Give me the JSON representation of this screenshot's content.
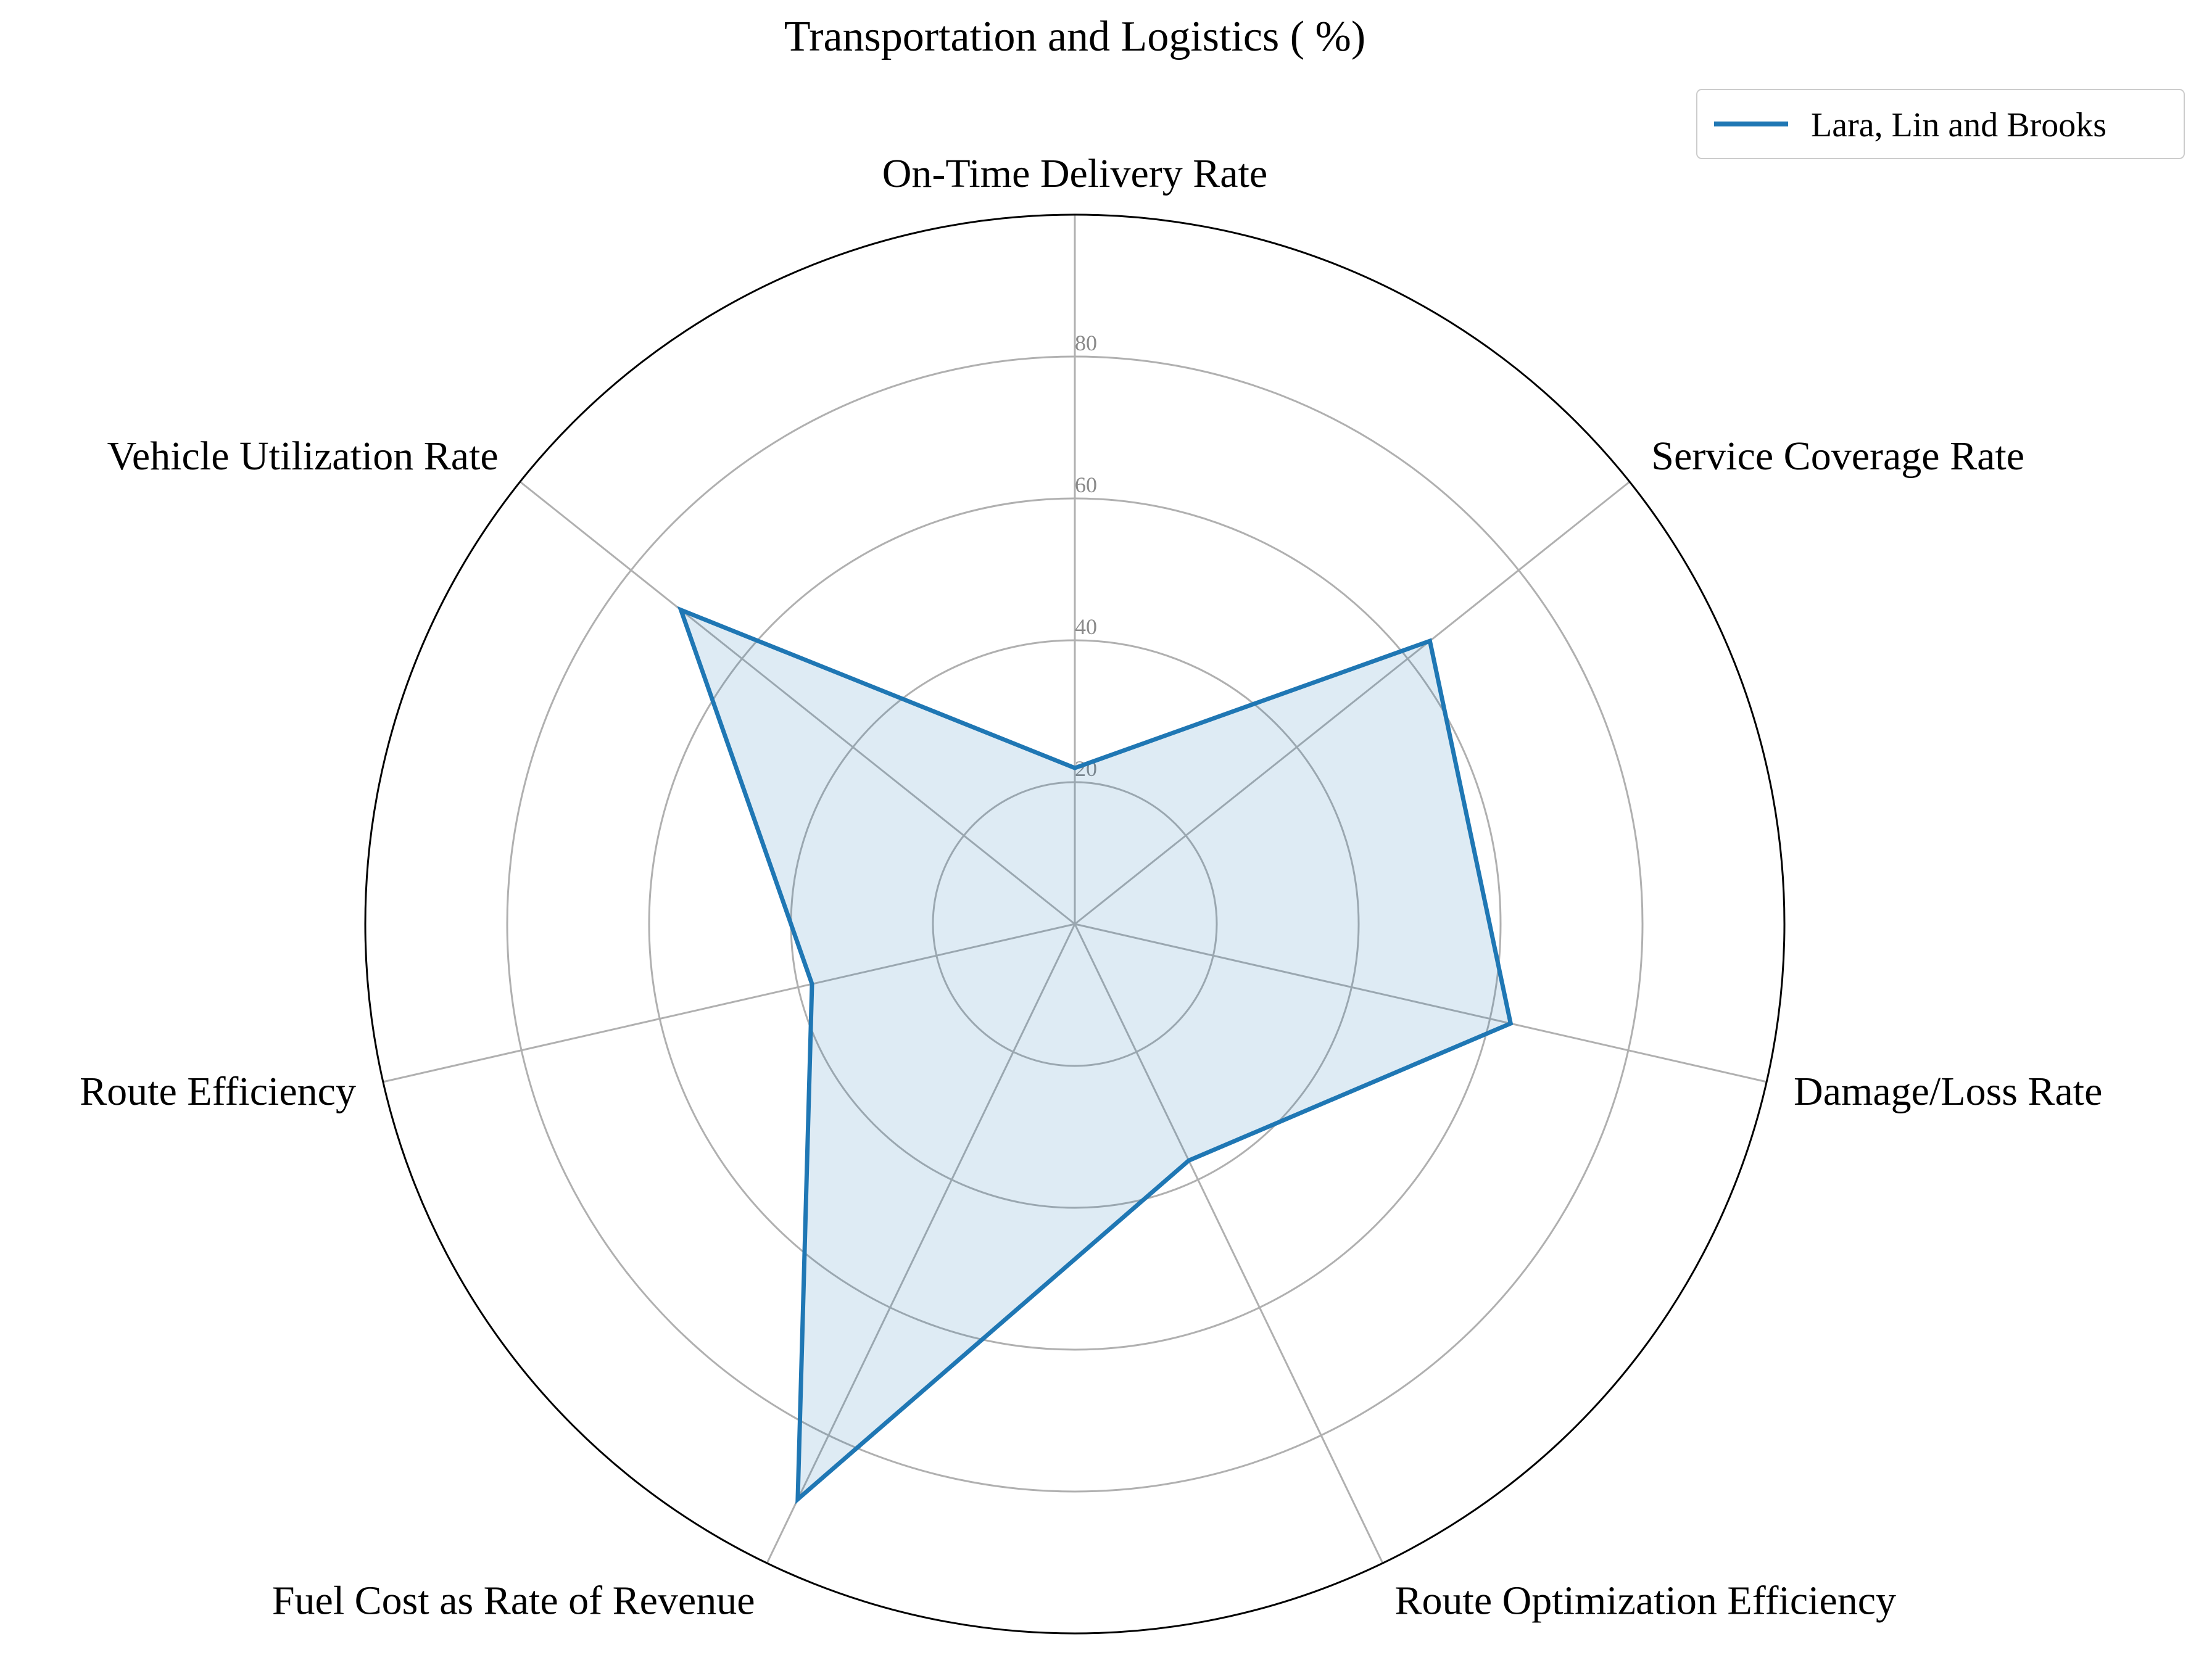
{
  "chart_data": {
    "type": "radar",
    "title": "Transportation and Logistics ( %)",
    "axes": [
      "On-Time Delivery Rate",
      "Service Coverage Rate",
      "Damage/Loss Rate",
      "Route Optimization Efficiency",
      "Fuel Cost as Rate of Revenue",
      "Route Efficiency",
      "Vehicle Utilization Rate"
    ],
    "rlim": [
      0,
      100
    ],
    "rticks": [
      20,
      40,
      60,
      80
    ],
    "grid": true,
    "legend_position": "top-right",
    "series": [
      {
        "name": "Lara, Lin and Brooks",
        "values": [
          22,
          64,
          63,
          37,
          90,
          38,
          71
        ],
        "color": "#1f77b4",
        "fill_color": "#1f77b4"
      }
    ]
  }
}
